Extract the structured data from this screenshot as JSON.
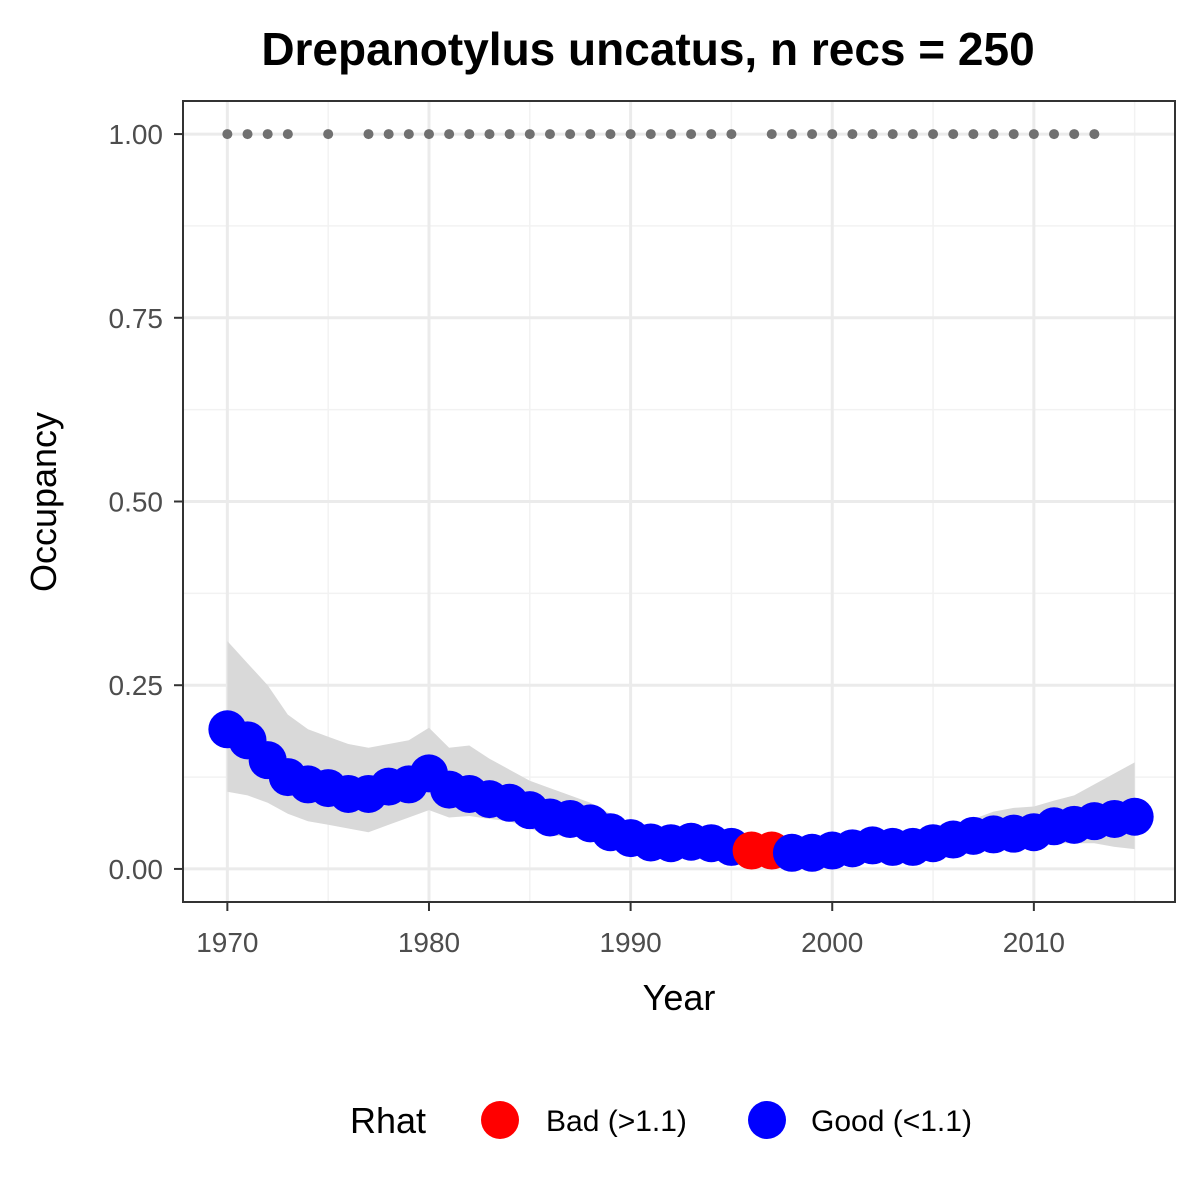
{
  "chart_data": {
    "type": "line",
    "title": "Drepanotylus uncatus, n recs = 250",
    "xlabel": "Year",
    "ylabel": "Occupancy",
    "xlim": [
      1967.8,
      2017
    ],
    "ylim": [
      -0.045,
      1.045
    ],
    "x_ticks": [
      1970,
      1980,
      1990,
      2000,
      2010
    ],
    "x_tick_labels": [
      "1970",
      "1980",
      "1990",
      "2000",
      "2010"
    ],
    "y_ticks": [
      0,
      0.25,
      0.5,
      0.75,
      1.0
    ],
    "y_tick_labels": [
      "0.00",
      "0.25",
      "0.50",
      "0.75",
      "1.00"
    ],
    "grid": true,
    "legend": {
      "title": "Rhat",
      "position": "bottom",
      "entries": [
        {
          "label": "Bad (>1.1)",
          "color": "#ff0000"
        },
        {
          "label": "Good (<1.1)",
          "color": "#0000ff"
        }
      ]
    },
    "colors": {
      "bad": "#ff0000",
      "good": "#0000ff",
      "ribbon": "#d9d9d9",
      "records": "#707070"
    },
    "series": [
      {
        "x": [
          1970,
          1971,
          1972,
          1973,
          1974,
          1975,
          1976,
          1977,
          1978,
          1979,
          1980,
          1981,
          1982,
          1983,
          1984,
          1985,
          1986,
          1987,
          1988,
          1989,
          1990,
          1991,
          1992,
          1993,
          1994,
          1995,
          1996,
          1997,
          1998,
          1999,
          2000,
          2001,
          2002,
          2003,
          2004,
          2005,
          2006,
          2007,
          2008,
          2009,
          2010,
          2011,
          2012,
          2013,
          2014,
          2015
        ],
        "y": [
          0.19,
          0.175,
          0.148,
          0.125,
          0.115,
          0.11,
          0.102,
          0.102,
          0.112,
          0.115,
          0.13,
          0.108,
          0.102,
          0.095,
          0.09,
          0.08,
          0.07,
          0.068,
          0.062,
          0.05,
          0.042,
          0.036,
          0.035,
          0.037,
          0.035,
          0.03,
          0.025,
          0.025,
          0.022,
          0.022,
          0.025,
          0.028,
          0.032,
          0.03,
          0.03,
          0.035,
          0.04,
          0.045,
          0.047,
          0.048,
          0.05,
          0.058,
          0.06,
          0.065,
          0.068,
          0.071
        ],
        "rhat": [
          "Good",
          "Good",
          "Good",
          "Good",
          "Good",
          "Good",
          "Good",
          "Good",
          "Good",
          "Good",
          "Good",
          "Good",
          "Good",
          "Good",
          "Good",
          "Good",
          "Good",
          "Good",
          "Good",
          "Good",
          "Good",
          "Good",
          "Good",
          "Good",
          "Good",
          "Good",
          "Bad",
          "Bad",
          "Good",
          "Good",
          "Good",
          "Good",
          "Good",
          "Good",
          "Good",
          "Good",
          "Good",
          "Good",
          "Good",
          "Good",
          "Good",
          "Good",
          "Good",
          "Good",
          "Good",
          "Good"
        ],
        "lower": [
          0.105,
          0.1,
          0.09,
          0.075,
          0.065,
          0.06,
          0.055,
          0.05,
          0.06,
          0.07,
          0.08,
          0.07,
          0.072,
          0.068,
          0.065,
          0.055,
          0.045,
          0.045,
          0.04,
          0.032,
          0.025,
          0.022,
          0.022,
          0.023,
          0.022,
          0.018,
          0.015,
          0.015,
          0.013,
          0.013,
          0.015,
          0.017,
          0.02,
          0.02,
          0.02,
          0.023,
          0.025,
          0.028,
          0.03,
          0.03,
          0.03,
          0.035,
          0.035,
          0.035,
          0.03,
          0.027
        ],
        "upper": [
          0.31,
          0.28,
          0.25,
          0.21,
          0.19,
          0.18,
          0.17,
          0.165,
          0.17,
          0.175,
          0.192,
          0.165,
          0.168,
          0.15,
          0.135,
          0.12,
          0.11,
          0.1,
          0.09,
          0.075,
          0.062,
          0.055,
          0.05,
          0.052,
          0.05,
          0.042,
          0.038,
          0.037,
          0.035,
          0.035,
          0.04,
          0.045,
          0.05,
          0.048,
          0.048,
          0.055,
          0.06,
          0.068,
          0.078,
          0.083,
          0.085,
          0.093,
          0.1,
          0.115,
          0.13,
          0.145
        ]
      }
    ],
    "records": {
      "y": 1.0,
      "x": [
        1970,
        1971,
        1972,
        1973,
        1975,
        1977,
        1978,
        1979,
        1980,
        1981,
        1982,
        1983,
        1984,
        1985,
        1986,
        1987,
        1988,
        1989,
        1990,
        1991,
        1992,
        1993,
        1994,
        1995,
        1997,
        1998,
        1999,
        2000,
        2001,
        2002,
        2003,
        2004,
        2005,
        2006,
        2007,
        2008,
        2009,
        2010,
        2011,
        2012,
        2013
      ]
    }
  }
}
